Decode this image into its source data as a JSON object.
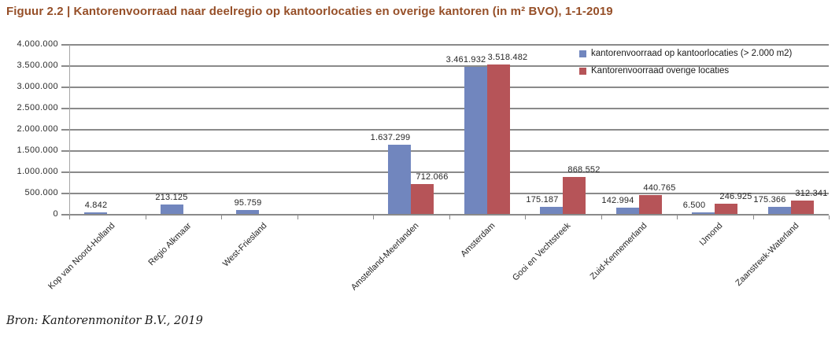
{
  "chart_data": {
    "type": "bar",
    "title": "Figuur 2.2 | Kantorenvoorraad naar deelregio op kantoorlocaties en overige kantoren (in m² BVO), 1-1-2019",
    "source": "Bron: Kantorenmonitor B.V., 2019",
    "categories": [
      "Kop van Noord-Holland",
      "Regio Alkmaar",
      "West-Friesland",
      "",
      "Amstelland-Meerlanden",
      "Amsterdam",
      "Gooi en Vechtstreek",
      "Zuid-Kennemerland",
      "IJmond",
      "Zaanstreek-Waterland"
    ],
    "series": [
      {
        "name": "kantorenvoorraad op kantoorlocaties (> 2.000 m2)",
        "color": "#7186be",
        "values": [
          4842,
          213125,
          95759,
          null,
          1637299,
          3461932,
          175187,
          142994,
          6500,
          175366
        ],
        "labels": [
          "4.842",
          "213.125",
          "95.759",
          null,
          "1.637.299",
          "3.461.932",
          "175.187",
          "142.994",
          "6.500",
          "175.366"
        ]
      },
      {
        "name": "Kantorenvoorraad overige locaties",
        "color": "#b65458",
        "values": [
          null,
          null,
          null,
          null,
          712066,
          3518482,
          868552,
          440765,
          246925,
          312341
        ],
        "labels": [
          null,
          null,
          null,
          null,
          "712.066",
          "3.518.482",
          "868.552",
          "440.765",
          "246.925",
          "312.341"
        ]
      }
    ],
    "xlabel": "",
    "ylabel": "",
    "ylim": [
      0,
      4000000
    ],
    "ytick_step": 500000,
    "ytick_labels": [
      "0",
      "500.000",
      "1.000.000",
      "1.500.000",
      "2.000.000",
      "2.500.000",
      "3.000.000",
      "3.500.000",
      "4.000.000"
    ],
    "grid": true,
    "legend_position": "top-right",
    "grid_color": "#8a8a8a",
    "text_color": "#262626",
    "title_color": "#964f28"
  }
}
